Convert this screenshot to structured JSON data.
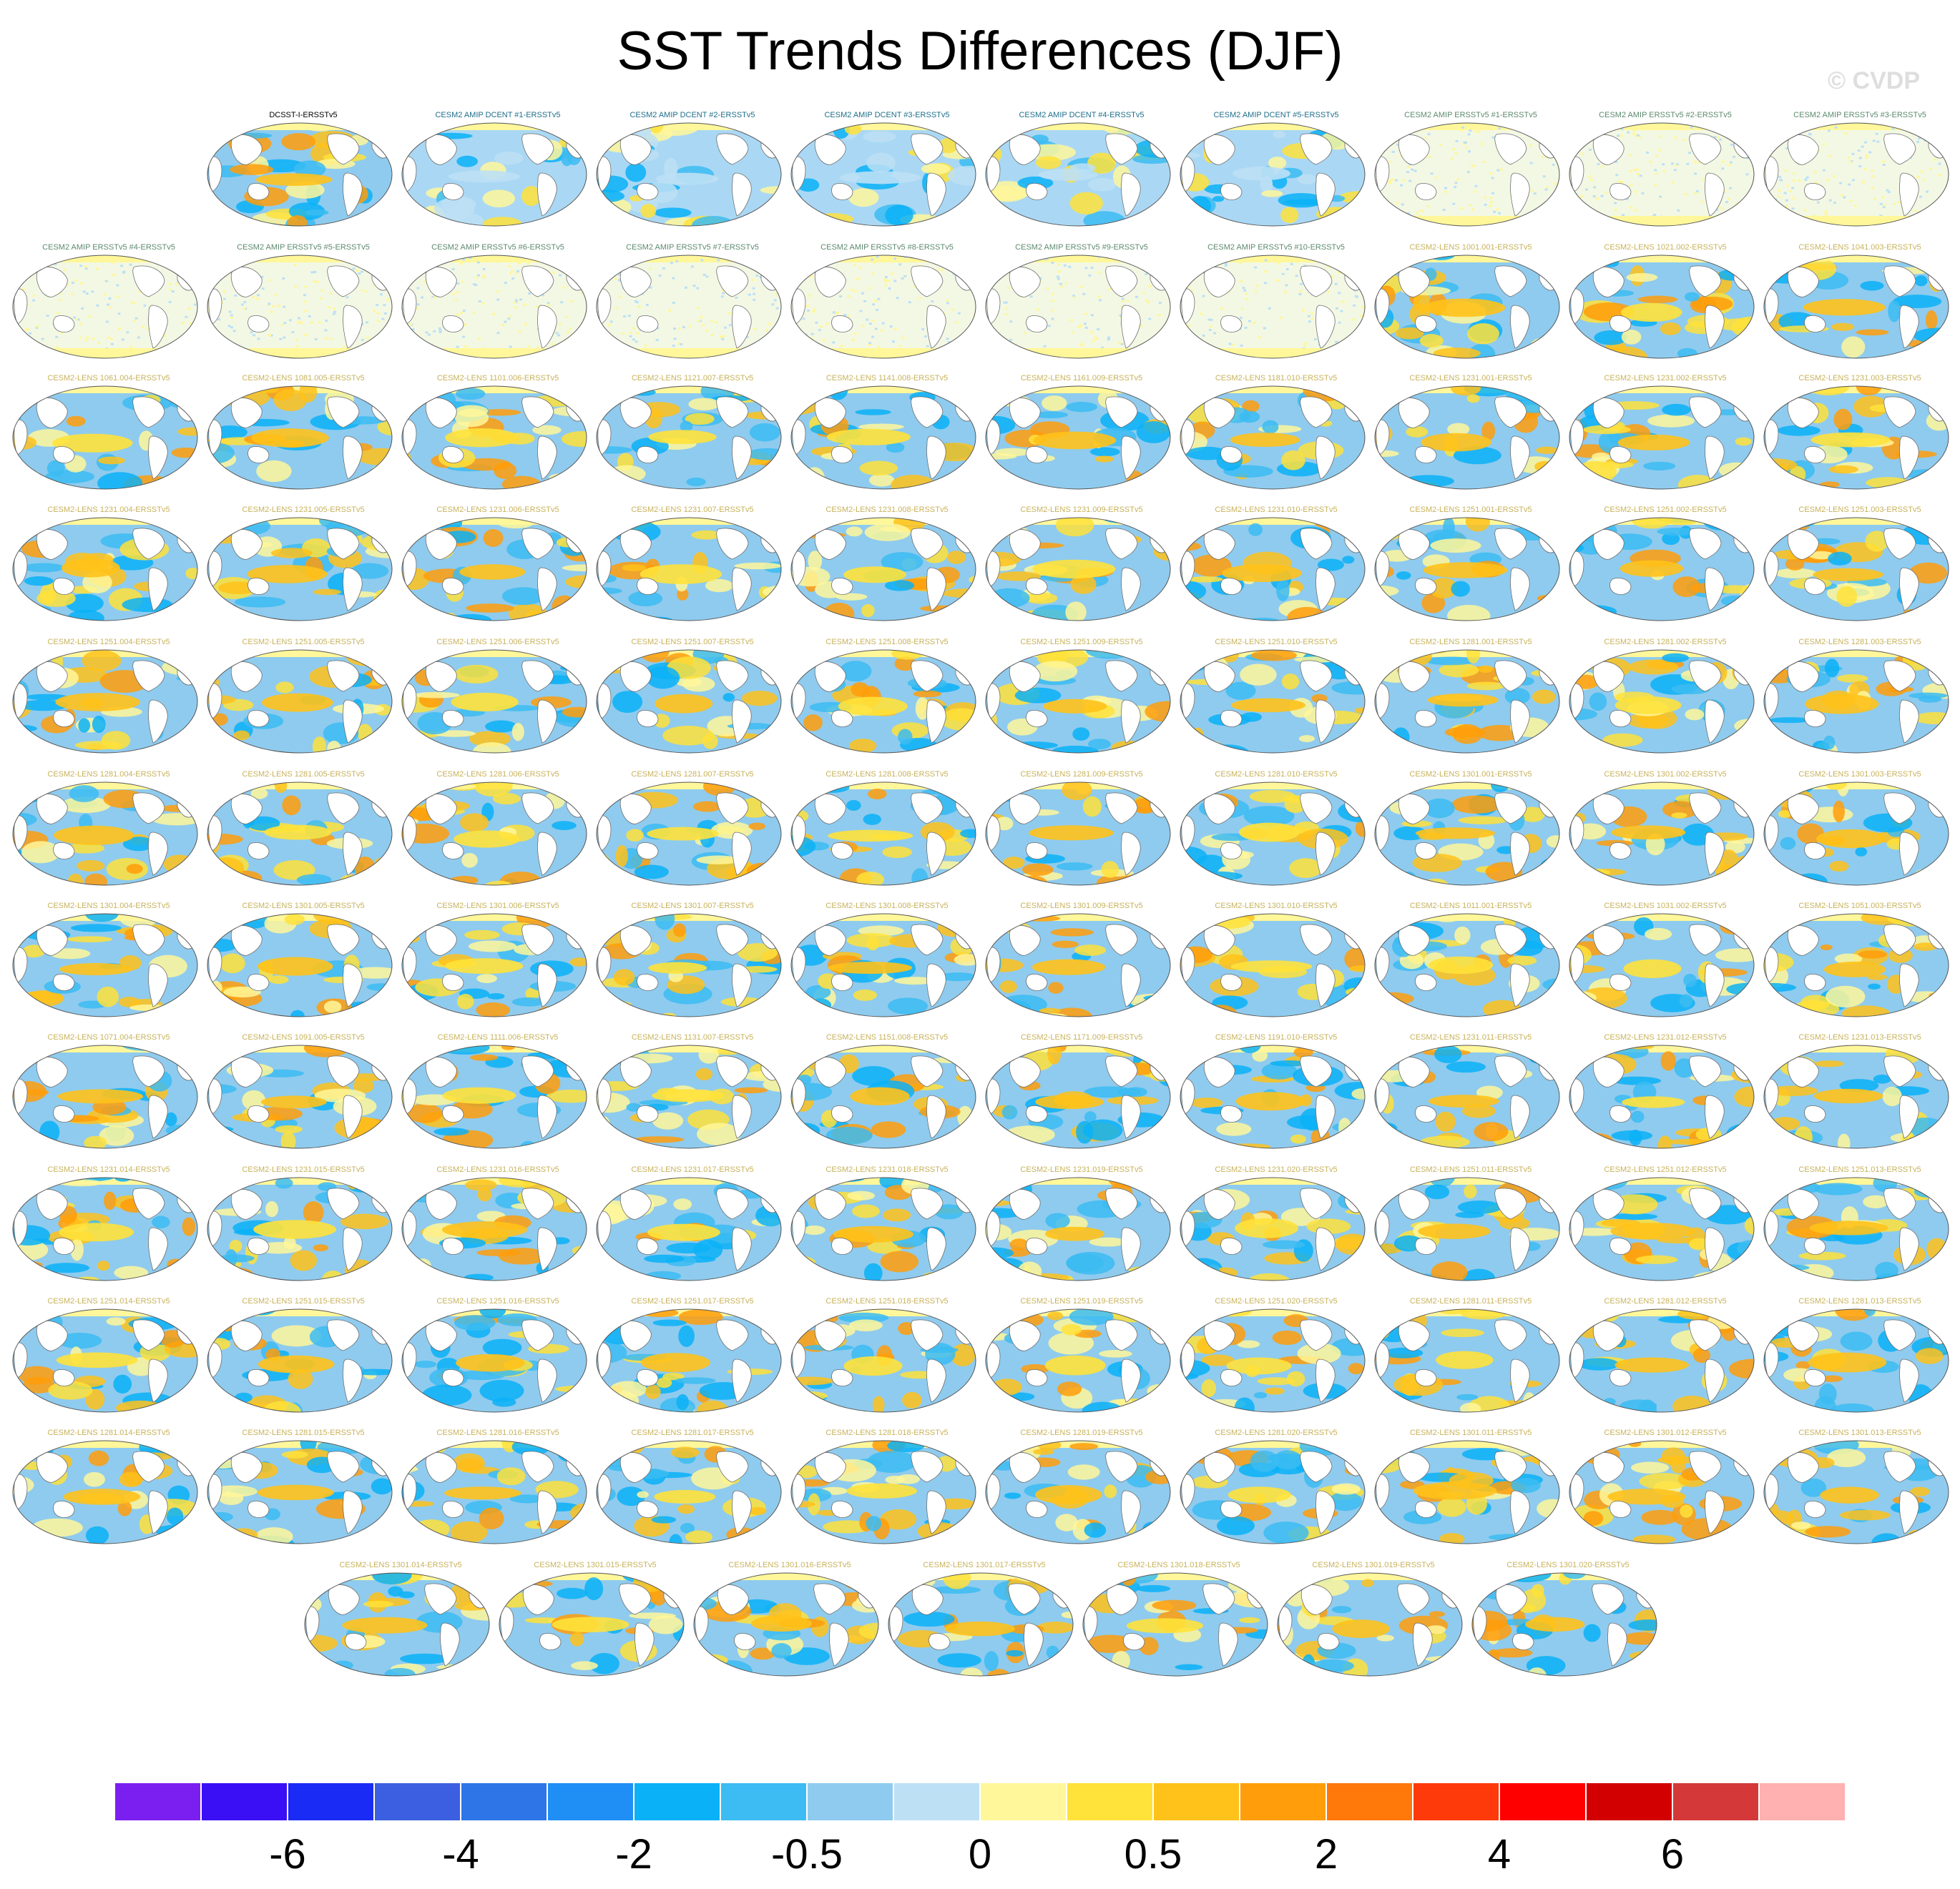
{
  "title": "SST Trends Differences (DJF)",
  "watermark": "© CVDP",
  "panels": [
    [
      "DCSST-I-ERSSTv5",
      "CESM2 AMIP DCENT #1-ERSSTv5",
      "CESM2 AMIP DCENT #2-ERSSTv5",
      "CESM2 AMIP DCENT #3-ERSSTv5",
      "CESM2 AMIP DCENT #4-ERSSTv5",
      "CESM2 AMIP DCENT #5-ERSSTv5",
      "CESM2 AMIP ERSSTv5 #1-ERSSTv5",
      "CESM2 AMIP ERSSTv5 #2-ERSSTv5",
      "CESM2 AMIP ERSSTv5 #3-ERSSTv5"
    ],
    [
      "CESM2 AMIP ERSSTv5 #4-ERSSTv5",
      "CESM2 AMIP ERSSTv5 #5-ERSSTv5",
      "CESM2 AMIP ERSSTv5 #6-ERSSTv5",
      "CESM2 AMIP ERSSTv5 #7-ERSSTv5",
      "CESM2 AMIP ERSSTv5 #8-ERSSTv5",
      "CESM2 AMIP ERSSTv5 #9-ERSSTv5",
      "CESM2 AMIP ERSSTv5 #10-ERSSTv5",
      "CESM2-LENS 1001.001-ERSSTv5",
      "CESM2-LENS 1021.002-ERSSTv5",
      "CESM2-LENS 1041.003-ERSSTv5"
    ],
    [
      "CESM2-LENS 1061.004-ERSSTv5",
      "CESM2-LENS 1081.005-ERSSTv5",
      "CESM2-LENS 1101.006-ERSSTv5",
      "CESM2-LENS 1121.007-ERSSTv5",
      "CESM2-LENS 1141.008-ERSSTv5",
      "CESM2-LENS 1161.009-ERSSTv5",
      "CESM2-LENS 1181.010-ERSSTv5",
      "CESM2-LENS 1231.001-ERSSTv5",
      "CESM2-LENS 1231.002-ERSSTv5",
      "CESM2-LENS 1231.003-ERSSTv5"
    ],
    [
      "CESM2-LENS 1231.004-ERSSTv5",
      "CESM2-LENS 1231.005-ERSSTv5",
      "CESM2-LENS 1231.006-ERSSTv5",
      "CESM2-LENS 1231.007-ERSSTv5",
      "CESM2-LENS 1231.008-ERSSTv5",
      "CESM2-LENS 1231.009-ERSSTv5",
      "CESM2-LENS 1231.010-ERSSTv5",
      "CESM2-LENS 1251.001-ERSSTv5",
      "CESM2-LENS 1251.002-ERSSTv5",
      "CESM2-LENS 1251.003-ERSSTv5"
    ],
    [
      "CESM2-LENS 1251.004-ERSSTv5",
      "CESM2-LENS 1251.005-ERSSTv5",
      "CESM2-LENS 1251.006-ERSSTv5",
      "CESM2-LENS 1251.007-ERSSTv5",
      "CESM2-LENS 1251.008-ERSSTv5",
      "CESM2-LENS 1251.009-ERSSTv5",
      "CESM2-LENS 1251.010-ERSSTv5",
      "CESM2-LENS 1281.001-ERSSTv5",
      "CESM2-LENS 1281.002-ERSSTv5",
      "CESM2-LENS 1281.003-ERSSTv5"
    ],
    [
      "CESM2-LENS 1281.004-ERSSTv5",
      "CESM2-LENS 1281.005-ERSSTv5",
      "CESM2-LENS 1281.006-ERSSTv5",
      "CESM2-LENS 1281.007-ERSSTv5",
      "CESM2-LENS 1281.008-ERSSTv5",
      "CESM2-LENS 1281.009-ERSSTv5",
      "CESM2-LENS 1281.010-ERSSTv5",
      "CESM2-LENS 1301.001-ERSSTv5",
      "CESM2-LENS 1301.002-ERSSTv5",
      "CESM2-LENS 1301.003-ERSSTv5"
    ],
    [
      "CESM2-LENS 1301.004-ERSSTv5",
      "CESM2-LENS 1301.005-ERSSTv5",
      "CESM2-LENS 1301.006-ERSSTv5",
      "CESM2-LENS 1301.007-ERSSTv5",
      "CESM2-LENS 1301.008-ERSSTv5",
      "CESM2-LENS 1301.009-ERSSTv5",
      "CESM2-LENS 1301.010-ERSSTv5",
      "CESM2-LENS 1011.001-ERSSTv5",
      "CESM2-LENS 1031.002-ERSSTv5",
      "CESM2-LENS 1051.003-ERSSTv5"
    ],
    [
      "CESM2-LENS 1071.004-ERSSTv5",
      "CESM2-LENS 1091.005-ERSSTv5",
      "CESM2-LENS 1111.006-ERSSTv5",
      "CESM2-LENS 1131.007-ERSSTv5",
      "CESM2-LENS 1151.008-ERSSTv5",
      "CESM2-LENS 1171.009-ERSSTv5",
      "CESM2-LENS 1191.010-ERSSTv5",
      "CESM2-LENS 1231.011-ERSSTv5",
      "CESM2-LENS 1231.012-ERSSTv5",
      "CESM2-LENS 1231.013-ERSSTv5"
    ],
    [
      "CESM2-LENS 1231.014-ERSSTv5",
      "CESM2-LENS 1231.015-ERSSTv5",
      "CESM2-LENS 1231.016-ERSSTv5",
      "CESM2-LENS 1231.017-ERSSTv5",
      "CESM2-LENS 1231.018-ERSSTv5",
      "CESM2-LENS 1231.019-ERSSTv5",
      "CESM2-LENS 1231.020-ERSSTv5",
      "CESM2-LENS 1251.011-ERSSTv5",
      "CESM2-LENS 1251.012-ERSSTv5",
      "CESM2-LENS 1251.013-ERSSTv5"
    ],
    [
      "CESM2-LENS 1251.014-ERSSTv5",
      "CESM2-LENS 1251.015-ERSSTv5",
      "CESM2-LENS 1251.016-ERSSTv5",
      "CESM2-LENS 1251.017-ERSSTv5",
      "CESM2-LENS 1251.018-ERSSTv5",
      "CESM2-LENS 1251.019-ERSSTv5",
      "CESM2-LENS 1251.020-ERSSTv5",
      "CESM2-LENS 1281.011-ERSSTv5",
      "CESM2-LENS 1281.012-ERSSTv5",
      "CESM2-LENS 1281.013-ERSSTv5"
    ],
    [
      "CESM2-LENS 1281.014-ERSSTv5",
      "CESM2-LENS 1281.015-ERSSTv5",
      "CESM2-LENS 1281.016-ERSSTv5",
      "CESM2-LENS 1281.017-ERSSTv5",
      "CESM2-LENS 1281.018-ERSSTv5",
      "CESM2-LENS 1281.019-ERSSTv5",
      "CESM2-LENS 1281.020-ERSSTv5",
      "CESM2-LENS 1301.011-ERSSTv5",
      "CESM2-LENS 1301.012-ERSSTv5",
      "CESM2-LENS 1301.013-ERSSTv5"
    ],
    [
      "CESM2-LENS 1301.014-ERSSTv5",
      "CESM2-LENS 1301.015-ERSSTv5",
      "CESM2-LENS 1301.016-ERSSTv5",
      "CESM2-LENS 1301.017-ERSSTv5",
      "CESM2-LENS 1301.018-ERSSTv5",
      "CESM2-LENS 1301.019-ERSSTv5",
      "CESM2-LENS 1301.020-ERSSTv5"
    ]
  ],
  "colorbar": {
    "colors": [
      "#7b1ff0",
      "#3a0ff5",
      "#1a2bf5",
      "#3b5fe0",
      "#2e75e8",
      "#1f8ef5",
      "#0ab1f7",
      "#3cbcf2",
      "#8fcbee",
      "#bde0f5",
      "#fff79a",
      "#ffe23a",
      "#ffc21a",
      "#ff9e0a",
      "#ff780a",
      "#ff3a0a",
      "#ff0000",
      "#d20000",
      "#d43838",
      "#ffb0b0"
    ],
    "labels": [
      {
        "text": "-6",
        "boundary": 2
      },
      {
        "text": "-4",
        "boundary": 4
      },
      {
        "text": "-2",
        "boundary": 6
      },
      {
        "text": "-0.5",
        "boundary": 8
      },
      {
        "text": "0",
        "boundary": 10
      },
      {
        "text": "0.5",
        "boundary": 12
      },
      {
        "text": "2",
        "boundary": 14
      },
      {
        "text": "4",
        "boundary": 16
      },
      {
        "text": "6",
        "boundary": 18
      }
    ]
  }
}
